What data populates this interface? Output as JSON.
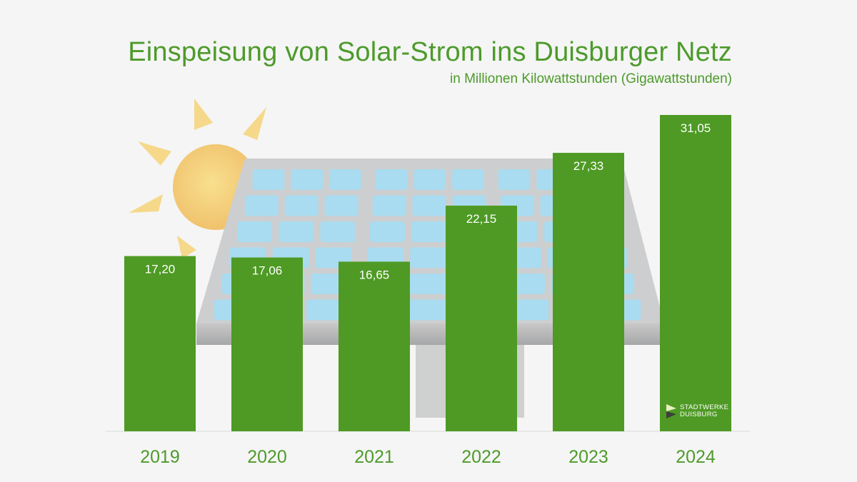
{
  "chart_data": {
    "type": "bar",
    "title": "Einspeisung von Solar-Strom ins Duisburger Netz",
    "subtitle": "in Millionen Kilowattstunden (Gigawattstunden)",
    "categories": [
      "2019",
      "2020",
      "2021",
      "2022",
      "2023",
      "2024"
    ],
    "values": [
      17.2,
      17.06,
      16.65,
      22.15,
      27.33,
      31.05
    ],
    "data_labels": [
      "17,20",
      "17,06",
      "16,65",
      "22,15",
      "27,33",
      "31,05"
    ],
    "xlabel": "",
    "ylabel": "",
    "ylim": [
      0,
      31.05
    ],
    "grid": false,
    "colors": {
      "bar": "#4e9a24",
      "text": "#4e9a2c",
      "background": "#f4f5f4"
    }
  },
  "logo": {
    "line1": "STADTWERKE",
    "line2": "DUISBURG"
  }
}
